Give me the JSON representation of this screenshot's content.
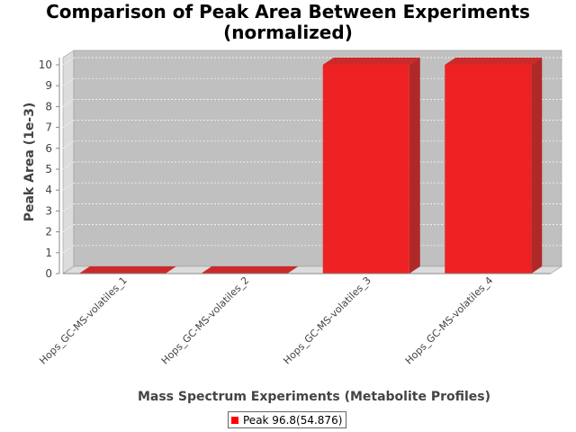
{
  "chart_data": {
    "type": "bar",
    "title_lines": [
      "Comparison of Peak Area Between Experiments",
      "(normalized)"
    ],
    "xlabel": "Mass Spectrum Experiments (Metabolite Profiles)",
    "ylabel": "Peak Area (1e-3)",
    "categories": [
      "Hops_GC-MS-volatiles_1",
      "Hops_GC-MS-volatiles_2",
      "Hops_GC-MS-volatiles_3",
      "Hops_GC-MS-volatiles_4"
    ],
    "series": [
      {
        "name": "Peak 96.8(54.876)",
        "values": [
          0,
          0,
          10,
          10
        ],
        "color": "#ff0000"
      }
    ],
    "yticks": [
      0,
      1,
      2,
      3,
      4,
      5,
      6,
      7,
      8,
      9,
      10
    ],
    "ylim": [
      0,
      10
    ],
    "grid": true,
    "legend_position": "bottom",
    "colors": {
      "plot_background": "#c0c0c0",
      "bar": "#ee2222",
      "bar_side": "#b02828",
      "bar_top": "#cc2a2a"
    }
  }
}
